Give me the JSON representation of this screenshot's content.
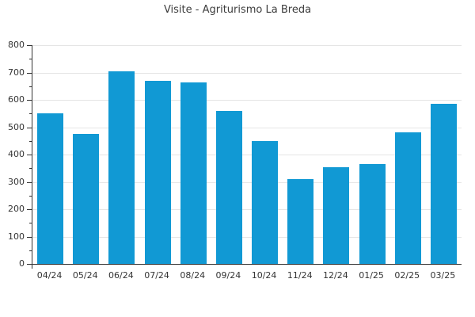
{
  "chart_data": {
    "type": "bar",
    "title": "Visite - Agriturismo La Breda",
    "categories": [
      "04/24",
      "05/24",
      "06/24",
      "07/24",
      "08/24",
      "09/24",
      "10/24",
      "11/24",
      "12/24",
      "01/25",
      "02/25",
      "03/25"
    ],
    "values": [
      550,
      475,
      705,
      670,
      665,
      560,
      450,
      310,
      355,
      365,
      480,
      585
    ],
    "xlabel": "",
    "ylabel": "",
    "ylim": [
      0,
      800
    ],
    "ytick_step": 100,
    "yminor_step": 50,
    "ytick_labels": [
      "0",
      "100",
      "200",
      "300",
      "400",
      "500",
      "600",
      "700",
      "800"
    ],
    "grid": true,
    "legend_position": "none",
    "bar_color": "#1199d4",
    "axis_color": "#333333",
    "grid_color": "#e5e5e5",
    "text_color": "#333333",
    "title_color": "#3d3d3d",
    "background_color": "#ffffff"
  }
}
